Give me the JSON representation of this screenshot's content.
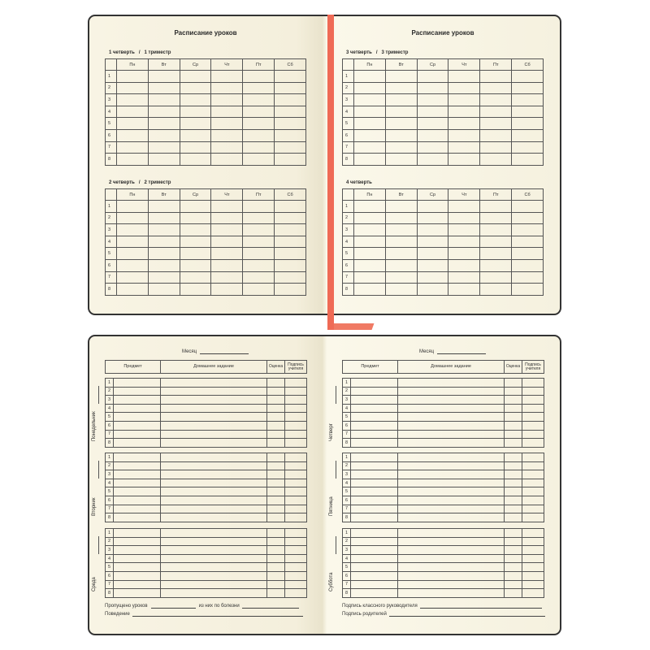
{
  "schedule": {
    "title": "Расписание уроков",
    "days": [
      "Пн",
      "Вт",
      "Ср",
      "Чт",
      "Пт",
      "Сб"
    ],
    "lessons": [
      "1",
      "2",
      "3",
      "4",
      "5",
      "6",
      "7",
      "8"
    ],
    "left_tables": [
      "1 четверть   /   1 триместр",
      "2 четверть   /   2 триместр"
    ],
    "right_tables": [
      "3 четверть   /   3 триместр",
      "4 четверть"
    ]
  },
  "diary": {
    "month_label": "Месяц",
    "headers": [
      "Предмет",
      "Домашнее задание",
      "Оценка",
      "Подпись учителя"
    ],
    "left_days": [
      "Понедельник",
      "Вторник",
      "Среда"
    ],
    "right_days": [
      "Четверг",
      "Пятница",
      "Суббота"
    ],
    "rows": [
      "1",
      "2",
      "3",
      "4",
      "5",
      "6",
      "7",
      "8"
    ],
    "left_footer": {
      "missed": "Пропущено уроков",
      "sick": "из них по болезни",
      "behavior": "Поведение"
    },
    "right_footer": {
      "teacher_sign": "Подпись классного руководителя",
      "parent_sign": "Подпись родителей"
    }
  },
  "colors": {
    "ribbon": "#ef6a55",
    "paper": "#f6f2e2",
    "cover": "#333333"
  }
}
